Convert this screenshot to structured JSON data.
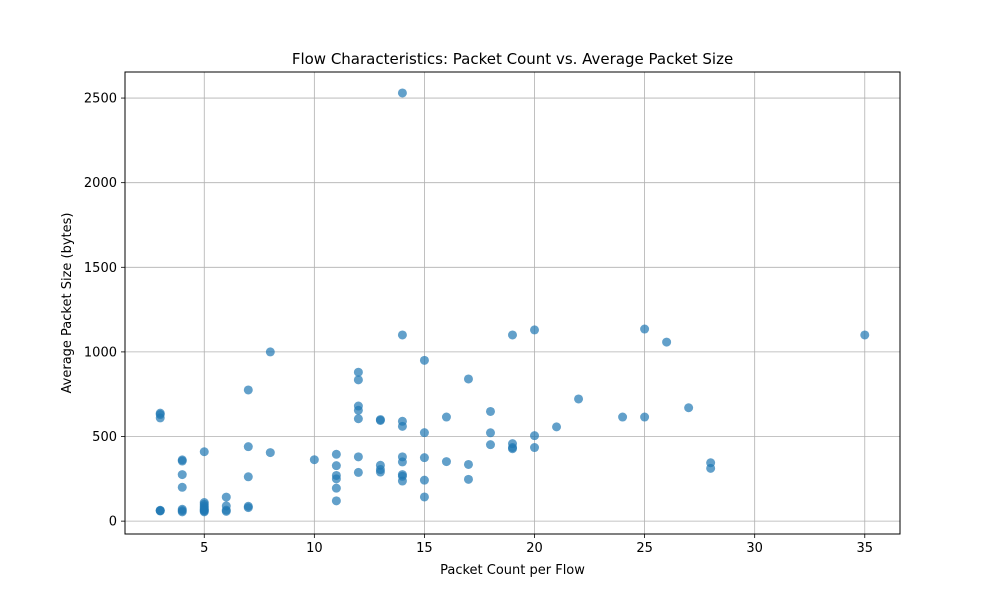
{
  "chart_data": {
    "type": "scatter",
    "title": "Flow Characteristics: Packet Count vs. Average Packet Size",
    "xlabel": "Packet Count per Flow",
    "ylabel": "Average Packet Size (bytes)",
    "xlim": [
      1.4,
      36.6
    ],
    "ylim": [
      -76,
      2654
    ],
    "xticks": [
      5,
      10,
      15,
      20,
      25,
      30,
      35
    ],
    "yticks": [
      0,
      500,
      1000,
      1500,
      2000,
      2500
    ],
    "grid": true,
    "legend": "none",
    "marker_color": "#1f77b4",
    "marker_alpha": 0.7,
    "points": [
      {
        "x": 3,
        "y": 60
      },
      {
        "x": 3,
        "y": 62
      },
      {
        "x": 3,
        "y": 64
      },
      {
        "x": 3,
        "y": 610
      },
      {
        "x": 3,
        "y": 630
      },
      {
        "x": 3,
        "y": 638
      },
      {
        "x": 4,
        "y": 55
      },
      {
        "x": 4,
        "y": 62
      },
      {
        "x": 4,
        "y": 70
      },
      {
        "x": 4,
        "y": 200
      },
      {
        "x": 4,
        "y": 275
      },
      {
        "x": 4,
        "y": 355
      },
      {
        "x": 4,
        "y": 362
      },
      {
        "x": 5,
        "y": 55
      },
      {
        "x": 5,
        "y": 60
      },
      {
        "x": 5,
        "y": 65
      },
      {
        "x": 5,
        "y": 70
      },
      {
        "x": 5,
        "y": 80
      },
      {
        "x": 5,
        "y": 90
      },
      {
        "x": 5,
        "y": 100
      },
      {
        "x": 5,
        "y": 110
      },
      {
        "x": 5,
        "y": 410
      },
      {
        "x": 6,
        "y": 58
      },
      {
        "x": 6,
        "y": 65
      },
      {
        "x": 6,
        "y": 90
      },
      {
        "x": 6,
        "y": 142
      },
      {
        "x": 7,
        "y": 80
      },
      {
        "x": 7,
        "y": 88
      },
      {
        "x": 7,
        "y": 262
      },
      {
        "x": 7,
        "y": 440
      },
      {
        "x": 7,
        "y": 775
      },
      {
        "x": 8,
        "y": 405
      },
      {
        "x": 8,
        "y": 1000
      },
      {
        "x": 10,
        "y": 363
      },
      {
        "x": 11,
        "y": 120
      },
      {
        "x": 11,
        "y": 195
      },
      {
        "x": 11,
        "y": 250
      },
      {
        "x": 11,
        "y": 270
      },
      {
        "x": 11,
        "y": 328
      },
      {
        "x": 11,
        "y": 395
      },
      {
        "x": 12,
        "y": 288
      },
      {
        "x": 12,
        "y": 380
      },
      {
        "x": 12,
        "y": 605
      },
      {
        "x": 12,
        "y": 655
      },
      {
        "x": 12,
        "y": 680
      },
      {
        "x": 12,
        "y": 835
      },
      {
        "x": 12,
        "y": 880
      },
      {
        "x": 13,
        "y": 290
      },
      {
        "x": 13,
        "y": 305
      },
      {
        "x": 13,
        "y": 330
      },
      {
        "x": 13,
        "y": 595
      },
      {
        "x": 13,
        "y": 600
      },
      {
        "x": 14,
        "y": 237
      },
      {
        "x": 14,
        "y": 265
      },
      {
        "x": 14,
        "y": 275
      },
      {
        "x": 14,
        "y": 350
      },
      {
        "x": 14,
        "y": 380
      },
      {
        "x": 14,
        "y": 560
      },
      {
        "x": 14,
        "y": 590
      },
      {
        "x": 14,
        "y": 1100
      },
      {
        "x": 14,
        "y": 2530
      },
      {
        "x": 15,
        "y": 143
      },
      {
        "x": 15,
        "y": 242
      },
      {
        "x": 15,
        "y": 375
      },
      {
        "x": 15,
        "y": 523
      },
      {
        "x": 15,
        "y": 950
      },
      {
        "x": 16,
        "y": 352
      },
      {
        "x": 16,
        "y": 615
      },
      {
        "x": 17,
        "y": 247
      },
      {
        "x": 17,
        "y": 335
      },
      {
        "x": 17,
        "y": 840
      },
      {
        "x": 18,
        "y": 452
      },
      {
        "x": 18,
        "y": 522
      },
      {
        "x": 18,
        "y": 648
      },
      {
        "x": 19,
        "y": 428
      },
      {
        "x": 19,
        "y": 435
      },
      {
        "x": 19,
        "y": 458
      },
      {
        "x": 19,
        "y": 1100
      },
      {
        "x": 20,
        "y": 435
      },
      {
        "x": 20,
        "y": 505
      },
      {
        "x": 20,
        "y": 1130
      },
      {
        "x": 21,
        "y": 557
      },
      {
        "x": 22,
        "y": 722
      },
      {
        "x": 24,
        "y": 615
      },
      {
        "x": 25,
        "y": 615
      },
      {
        "x": 25,
        "y": 1135
      },
      {
        "x": 26,
        "y": 1058
      },
      {
        "x": 27,
        "y": 670
      },
      {
        "x": 28,
        "y": 312
      },
      {
        "x": 28,
        "y": 345
      },
      {
        "x": 35,
        "y": 1100
      }
    ]
  }
}
